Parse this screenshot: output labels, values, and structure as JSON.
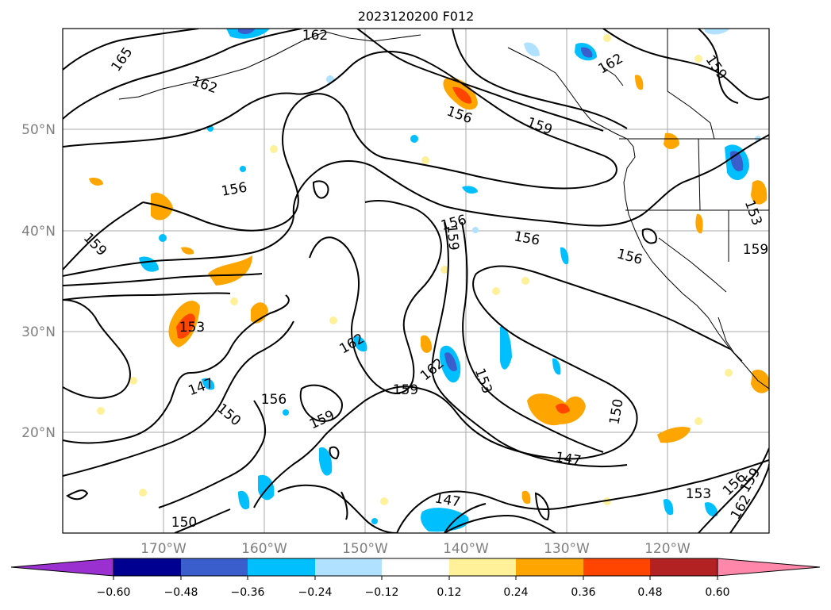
{
  "title": "2023120200 F012",
  "lat_labels": [
    "50°N",
    "40°N",
    "30°N",
    "20°N"
  ],
  "lon_labels": [
    "170°W",
    "160°W",
    "150°W",
    "140°W",
    "130°W",
    "120°W"
  ],
  "contour_labels": [
    "165",
    "162",
    "162",
    "156",
    "159",
    "156",
    "156",
    "159",
    "156",
    "156",
    "159",
    "153",
    "162",
    "162",
    "159",
    "153",
    "147",
    "156",
    "150",
    "159",
    "150",
    "147",
    "147",
    "153",
    "156",
    "159",
    "162",
    "162",
    "159",
    "150",
    "153",
    "159"
  ],
  "colorbar": {
    "ticks": [
      "−0.60",
      "−0.48",
      "−0.36",
      "−0.24",
      "−0.12",
      "0.12",
      "0.24",
      "0.36",
      "0.48",
      "0.60"
    ],
    "colors": {
      "under": "#9b30d0",
      "bins": [
        "#000090",
        "#3a5fcd",
        "#00bfff",
        "#b0e2ff",
        "#ffffff",
        "#fff09a",
        "#ffa500",
        "#ff4500",
        "#b22222",
        "#ff88aa"
      ],
      "over": "#ff88aa"
    }
  },
  "grid_color": "#aaaaaa",
  "tick_label_color": "#808080"
}
